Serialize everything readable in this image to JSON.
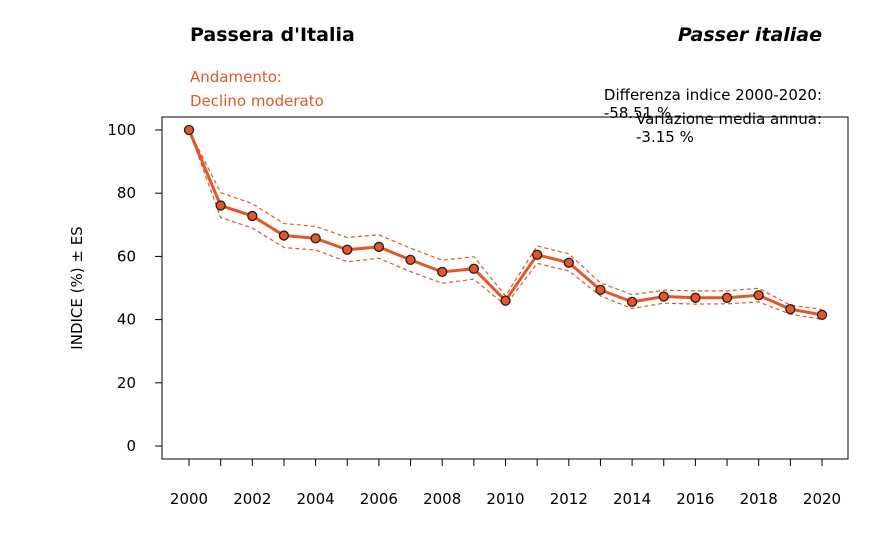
{
  "header": {
    "common_name": "Passera d'Italia",
    "scientific_name": "Passer italiae",
    "trend_label": "Andamento:",
    "trend_value": "Declino moderato",
    "diff_label": "Differenza indice 2000-2020:",
    "diff_value": "-58.51 %",
    "annual_label": "Variazione media annua:",
    "annual_value": "-3.15 %"
  },
  "colors": {
    "accent": "#e4562a",
    "marker_edge": "#2b1a14"
  },
  "chart_data": {
    "type": "line",
    "ylabel": "INDICE (%) ± ES",
    "xlabel": "",
    "xlim": [
      2000,
      2020
    ],
    "ylim": [
      0,
      100
    ],
    "x_ticks": [
      2000,
      2002,
      2004,
      2006,
      2008,
      2010,
      2012,
      2014,
      2016,
      2018,
      2020
    ],
    "y_ticks": [
      0,
      20,
      40,
      60,
      80,
      100
    ],
    "grid": false,
    "series": [
      {
        "x": [
          2000,
          2001,
          2002,
          2003,
          2004,
          2005,
          2006,
          2007,
          2008,
          2009,
          2010,
          2011,
          2012,
          2013,
          2014,
          2015,
          2016,
          2017,
          2018,
          2019,
          2020
        ],
        "values": [
          100,
          76.1,
          72.8,
          66.6,
          65.7,
          62.1,
          63.0,
          58.9,
          55.1,
          56.1,
          46.0,
          60.5,
          58.0,
          49.4,
          45.6,
          47.3,
          46.9,
          46.9,
          47.7,
          43.3,
          41.5
        ],
        "upper": [
          100,
          80.2,
          76.7,
          70.4,
          69.5,
          66.0,
          66.8,
          62.6,
          58.8,
          59.9,
          47.5,
          63.3,
          60.8,
          51.6,
          47.9,
          49.3,
          49.1,
          49.1,
          49.9,
          44.6,
          43.2
        ],
        "lower": [
          100,
          72.3,
          69.0,
          62.8,
          62.0,
          58.3,
          59.4,
          55.2,
          51.5,
          52.8,
          44.5,
          57.8,
          55.4,
          47.5,
          43.5,
          45.2,
          44.9,
          45.0,
          45.6,
          41.7,
          40.1
        ]
      }
    ]
  }
}
